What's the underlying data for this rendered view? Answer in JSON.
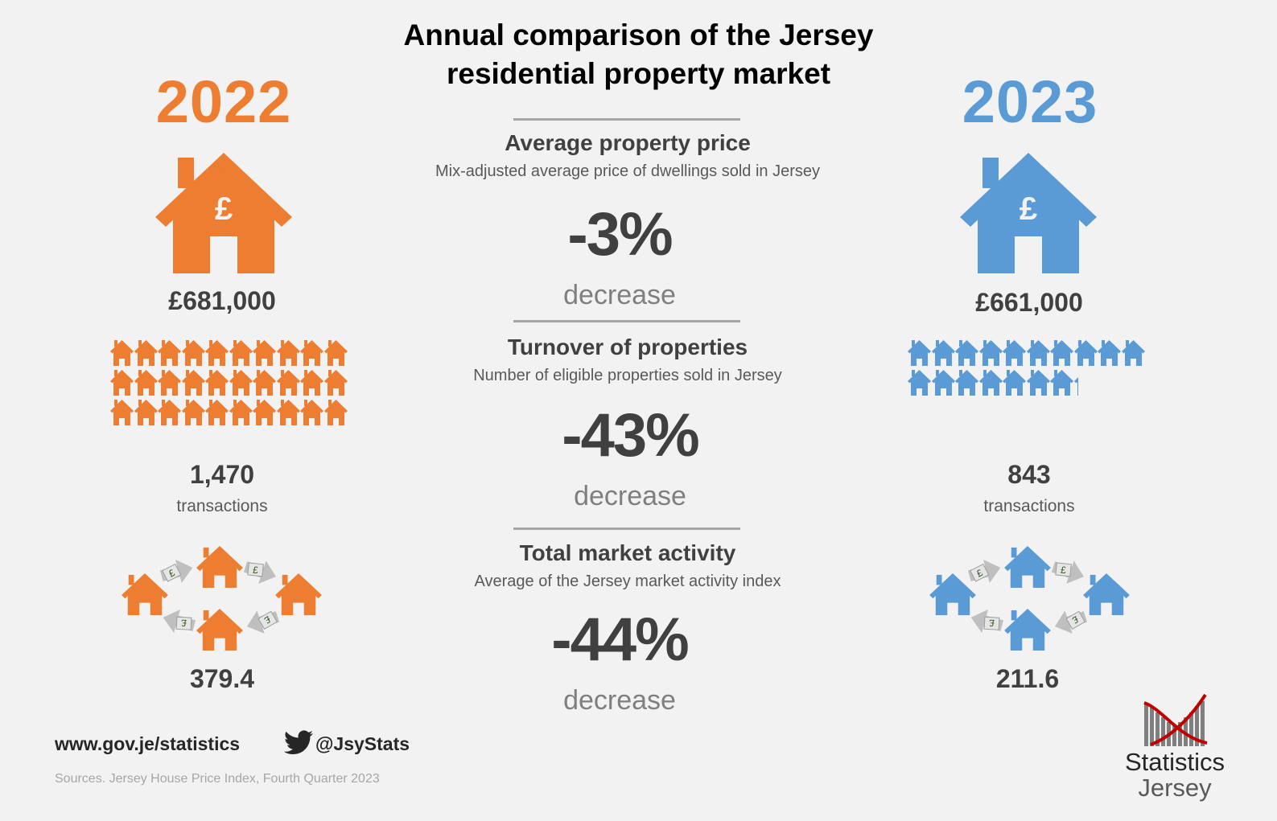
{
  "title": {
    "line1": "Annual comparison of the Jersey",
    "line2": "residential property market"
  },
  "years": {
    "left": "2022",
    "right": "2023"
  },
  "colors": {
    "left": "#ed7d31",
    "right": "#5b9bd5",
    "rule": "#a6a6a6",
    "text": "#404040"
  },
  "sections": [
    {
      "title": "Average property price",
      "subtitle": "Mix-adjusted average price of dwellings sold in Jersey",
      "change": "-3%",
      "direction": "decrease"
    },
    {
      "title": "Turnover of properties",
      "subtitle": "Number of eligible properties sold in Jersey",
      "change": "-43%",
      "direction": "decrease"
    },
    {
      "title": "Total market activity",
      "subtitle": "Average of the Jersey market activity index",
      "change": "-44%",
      "direction": "decrease"
    }
  ],
  "left": {
    "price": "£681,000",
    "transactions": "1,470",
    "transactions_label": "transactions",
    "activity_index": "379.4",
    "house_icons": 30
  },
  "right": {
    "price": "£661,000",
    "transactions": "843",
    "transactions_label": "transactions",
    "activity_index": "211.6",
    "house_icons": 17.2
  },
  "icons": {
    "house": "house-icon",
    "pound": "pound-icon",
    "arrow": "money-arrow-icon",
    "twitter": "twitter-bird-icon"
  },
  "footer": {
    "website": "www.gov.je/statistics",
    "twitter_handle": "@JsyStats",
    "sources": "Sources. Jersey House Price Index, Fourth Quarter 2023"
  },
  "logo": {
    "line1": "Statistics",
    "line2": "Jersey"
  }
}
